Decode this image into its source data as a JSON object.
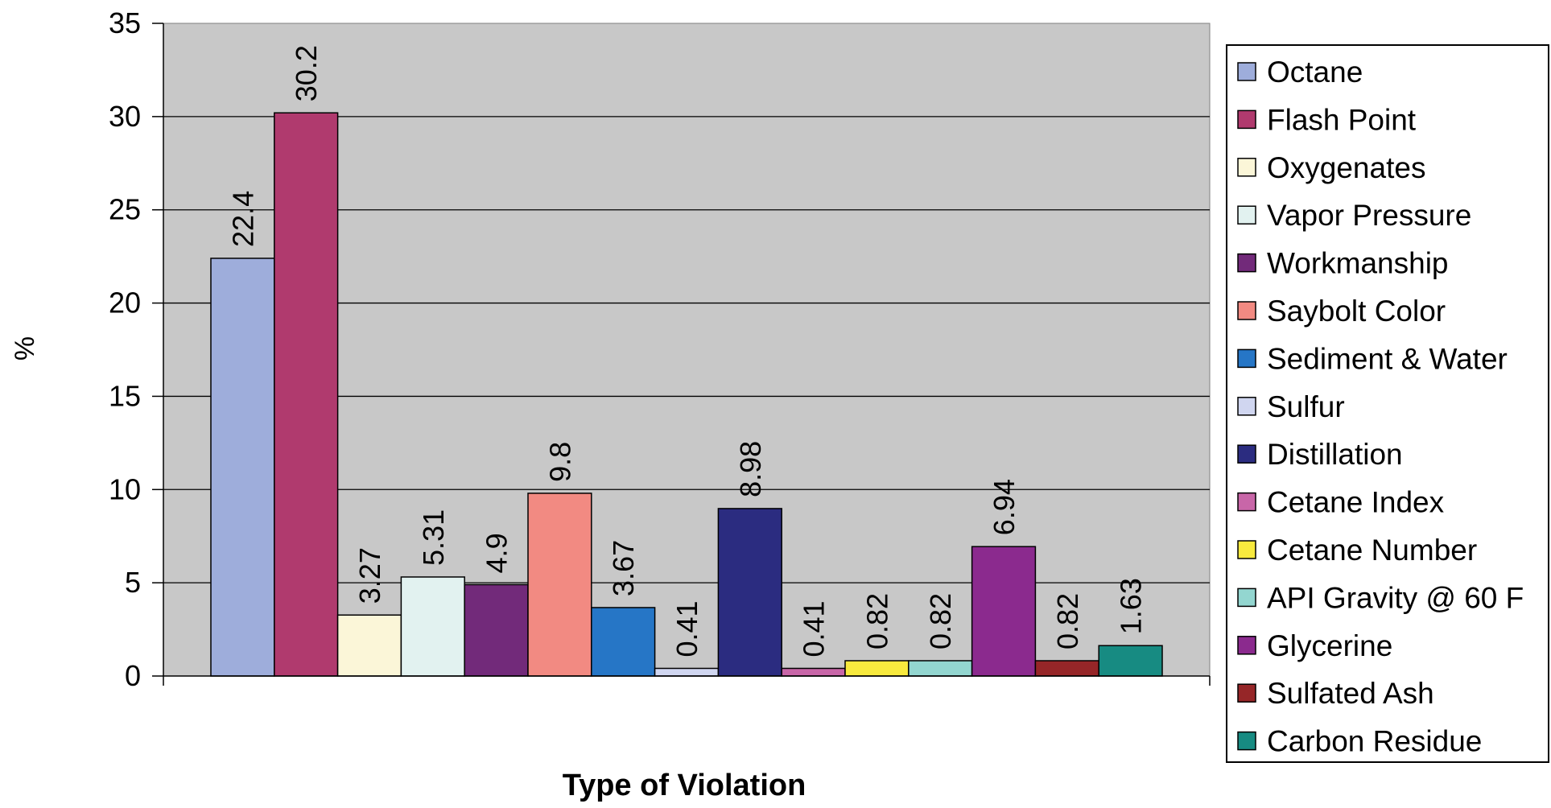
{
  "chart_data": {
    "type": "bar",
    "title": "",
    "xlabel": "Type of Violation",
    "ylabel": "%",
    "ylim": [
      0,
      35
    ],
    "yticks": [
      "0",
      "5",
      "10",
      "15",
      "20",
      "25",
      "30",
      "35"
    ],
    "grid": true,
    "legend_position": "right",
    "series": [
      {
        "name": "Octane",
        "value": 22.4,
        "label": "22.4",
        "color": "#9eaddb"
      },
      {
        "name": "Flash Point",
        "value": 30.2,
        "label": "30.2",
        "color": "#b03a6e"
      },
      {
        "name": "Oxygenates",
        "value": 3.27,
        "label": "3.27",
        "color": "#fbf6d8"
      },
      {
        "name": "Vapor Pressure",
        "value": 5.31,
        "label": "5.31",
        "color": "#e2f2f0"
      },
      {
        "name": "Workmanship",
        "value": 4.9,
        "label": "4.9",
        "color": "#722a7a"
      },
      {
        "name": "Saybolt Color",
        "value": 9.8,
        "label": "9.8",
        "color": "#f28a82"
      },
      {
        "name": "Sediment & Water",
        "value": 3.67,
        "label": "3.67",
        "color": "#2676c6"
      },
      {
        "name": "Sulfur",
        "value": 0.41,
        "label": "0.41",
        "color": "#d0d6f0"
      },
      {
        "name": "Distillation",
        "value": 8.98,
        "label": "8.98",
        "color": "#2b2c80"
      },
      {
        "name": "Cetane Index",
        "value": 0.41,
        "label": "0.41",
        "color": "#c866a8"
      },
      {
        "name": "Cetane Number",
        "value": 0.82,
        "label": "0.82",
        "color": "#f8ea3e"
      },
      {
        "name": "API Gravity @ 60 F",
        "value": 0.82,
        "label": "0.82",
        "color": "#93d6d0"
      },
      {
        "name": "Glycerine",
        "value": 6.94,
        "label": "6.94",
        "color": "#8b2a8e"
      },
      {
        "name": "Sulfated Ash",
        "value": 0.82,
        "label": "0.82",
        "color": "#962628"
      },
      {
        "name": "Carbon Residue",
        "value": 1.63,
        "label": "1.63",
        "color": "#178b82"
      }
    ]
  }
}
